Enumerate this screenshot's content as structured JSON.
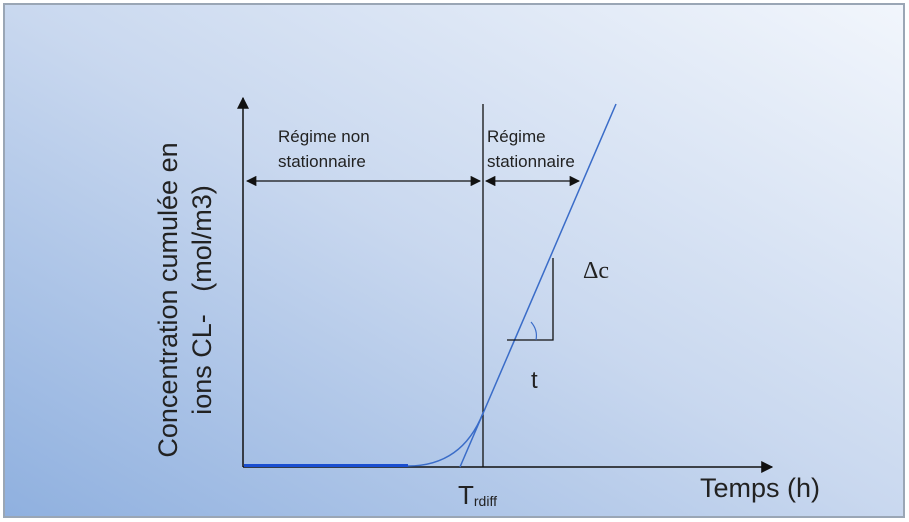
{
  "y_axis_label": [
    "Concentration cumulée en",
    "ions CL-   (mol/m3)"
  ],
  "x_axis_label": "Temps (h)",
  "regions": [
    {
      "lines": [
        "Régime non",
        "stationnaire"
      ]
    },
    {
      "lines": [
        "Régime",
        "stationnaire"
      ]
    }
  ],
  "slope": {
    "delta_c": "Δc",
    "t": "t"
  },
  "time_marker": {
    "label": "T",
    "subscript": "rdiff"
  }
}
